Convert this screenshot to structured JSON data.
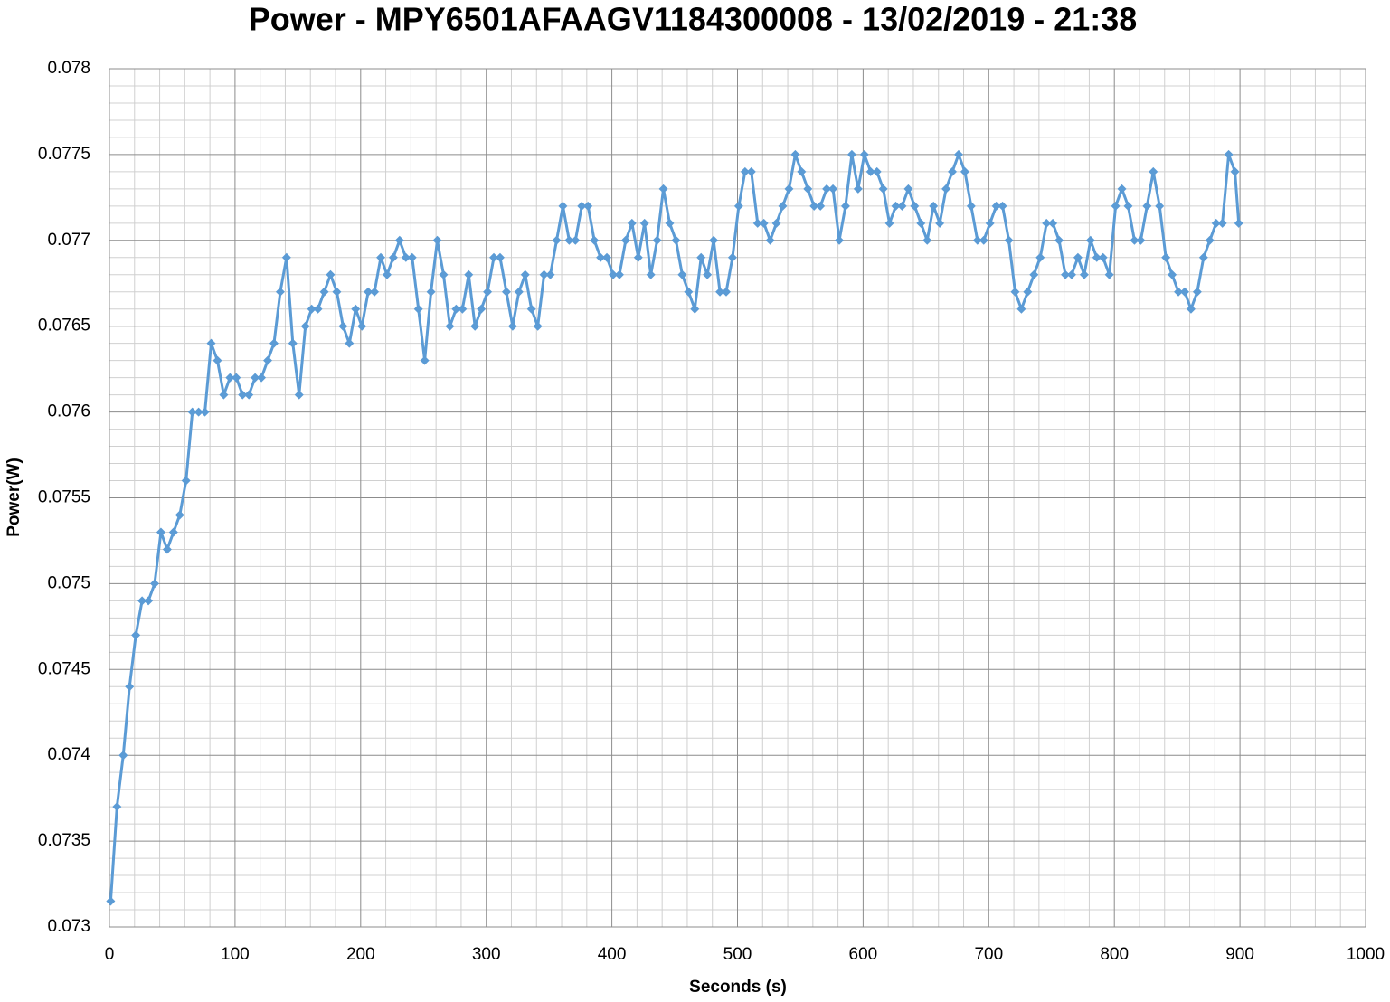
{
  "chart_data": {
    "type": "line",
    "title": "Power - MPY6501AFAAGV1184300008 - 13/02/2019 - 21:38",
    "x_label": "Seconds (s)",
    "y_label": "Power(W)",
    "xlim": [
      0,
      1000
    ],
    "xticks": [
      0,
      100,
      200,
      300,
      400,
      500,
      600,
      700,
      800,
      900,
      1000
    ],
    "ylim": [
      0.073,
      0.078
    ],
    "yticks": [
      0.073,
      0.0735,
      0.074,
      0.0745,
      0.075,
      0.0755,
      0.076,
      0.0765,
      0.077,
      0.0775,
      0.078
    ],
    "grid": true,
    "minor_grid": true,
    "marker": "diamond",
    "x": [
      1,
      6,
      11,
      16,
      21,
      26,
      31,
      36,
      41,
      46,
      51,
      56,
      61,
      66,
      71,
      76,
      81,
      86,
      91,
      96,
      101,
      106,
      111,
      116,
      121,
      126,
      131,
      136,
      141,
      146,
      151,
      156,
      161,
      166,
      171,
      176,
      181,
      186,
      191,
      196,
      201,
      206,
      211,
      216,
      221,
      226,
      231,
      236,
      241,
      246,
      251,
      256,
      261,
      266,
      271,
      276,
      281,
      286,
      291,
      296,
      301,
      306,
      311,
      316,
      321,
      326,
      331,
      336,
      341,
      346,
      351,
      356,
      361,
      366,
      371,
      376,
      381,
      386,
      391,
      396,
      401,
      406,
      411,
      416,
      421,
      426,
      431,
      436,
      441,
      446,
      451,
      456,
      461,
      466,
      471,
      476,
      481,
      486,
      491,
      496,
      501,
      506,
      511,
      516,
      521,
      526,
      531,
      536,
      541,
      546,
      551,
      556,
      561,
      566,
      571,
      576,
      581,
      586,
      591,
      596,
      601,
      606,
      611,
      616,
      621,
      626,
      631,
      636,
      641,
      646,
      651,
      656,
      661,
      666,
      671,
      676,
      681,
      686,
      691,
      696,
      701,
      706,
      711,
      716,
      721,
      726,
      731,
      736,
      741,
      746,
      751,
      756,
      761,
      766,
      771,
      776,
      781,
      786,
      791,
      796,
      801,
      806,
      811,
      816,
      821,
      826,
      831,
      836,
      841,
      846,
      851,
      856,
      861,
      866,
      871,
      876,
      881,
      886,
      891,
      896,
      899
    ],
    "series": [
      {
        "name": "Power(W)",
        "color": "#5b9bd5",
        "values": [
          0.07315,
          0.0737,
          0.074,
          0.0744,
          0.0747,
          0.0749,
          0.0749,
          0.075,
          0.0753,
          0.0752,
          0.0753,
          0.0754,
          0.0756,
          0.076,
          0.076,
          0.076,
          0.0764,
          0.0763,
          0.0761,
          0.0762,
          0.0762,
          0.0761,
          0.0761,
          0.0762,
          0.0762,
          0.0763,
          0.0764,
          0.0767,
          0.0769,
          0.0764,
          0.0761,
          0.0765,
          0.0766,
          0.0766,
          0.0767,
          0.0768,
          0.0767,
          0.0765,
          0.0764,
          0.0766,
          0.0765,
          0.0767,
          0.0767,
          0.0769,
          0.0768,
          0.0769,
          0.077,
          0.0769,
          0.0769,
          0.0766,
          0.0763,
          0.0767,
          0.077,
          0.0768,
          0.0765,
          0.0766,
          0.0766,
          0.0768,
          0.0765,
          0.0766,
          0.0767,
          0.0769,
          0.0769,
          0.0767,
          0.0765,
          0.0767,
          0.0768,
          0.0766,
          0.0765,
          0.0768,
          0.0768,
          0.077,
          0.0772,
          0.077,
          0.077,
          0.0772,
          0.0772,
          0.077,
          0.0769,
          0.0769,
          0.0768,
          0.0768,
          0.077,
          0.0771,
          0.0769,
          0.0771,
          0.0768,
          0.077,
          0.0773,
          0.0771,
          0.077,
          0.0768,
          0.0767,
          0.0766,
          0.0769,
          0.0768,
          0.077,
          0.0767,
          0.0767,
          0.0769,
          0.0772,
          0.0774,
          0.0774,
          0.0771,
          0.0771,
          0.077,
          0.0771,
          0.0772,
          0.0773,
          0.0775,
          0.0774,
          0.0773,
          0.0772,
          0.0772,
          0.0773,
          0.0773,
          0.077,
          0.0772,
          0.0775,
          0.0773,
          0.0775,
          0.0774,
          0.0774,
          0.0773,
          0.0771,
          0.0772,
          0.0772,
          0.0773,
          0.0772,
          0.0771,
          0.077,
          0.0772,
          0.0771,
          0.0773,
          0.0774,
          0.0775,
          0.0774,
          0.0772,
          0.077,
          0.077,
          0.0771,
          0.0772,
          0.0772,
          0.077,
          0.0767,
          0.0766,
          0.0767,
          0.0768,
          0.0769,
          0.0771,
          0.0771,
          0.077,
          0.0768,
          0.0768,
          0.0769,
          0.0768,
          0.077,
          0.0769,
          0.0769,
          0.0768,
          0.0772,
          0.0773,
          0.0772,
          0.077,
          0.077,
          0.0772,
          0.0774,
          0.0772,
          0.0769,
          0.0768,
          0.0767,
          0.0767,
          0.0766,
          0.0767,
          0.0769,
          0.077,
          0.0771,
          0.0771,
          0.0775,
          0.0774,
          0.0771
        ]
      }
    ]
  }
}
